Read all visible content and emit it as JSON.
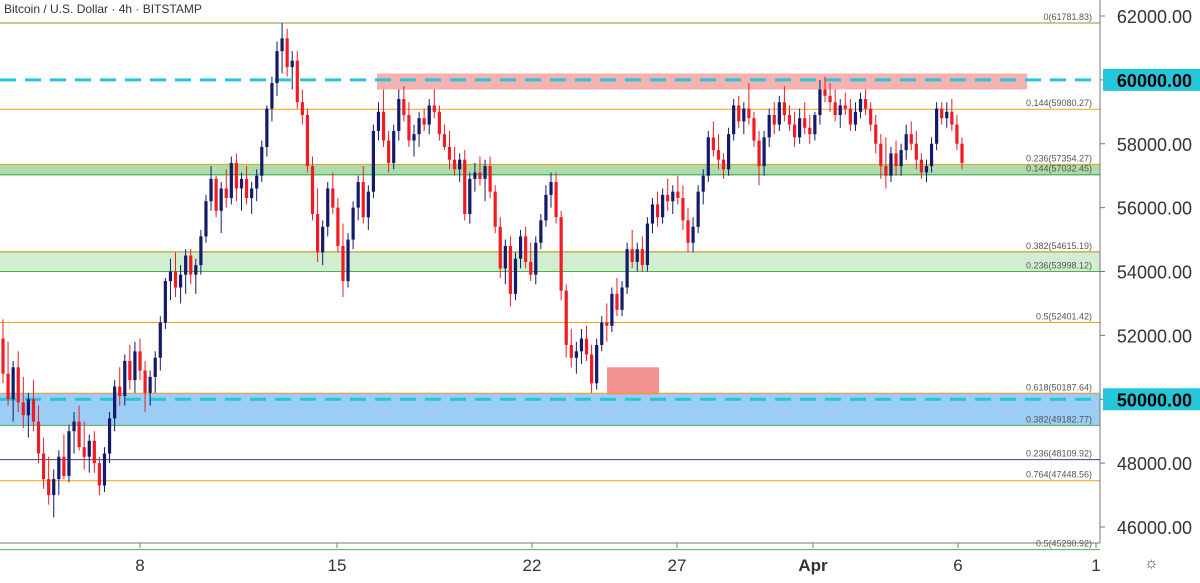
{
  "header": {
    "title": "Bitcoin / U.S. Dollar · 4h · BITSTAMP"
  },
  "icons": {
    "settings": "gear-icon"
  },
  "chart_data": {
    "type": "candlestick",
    "ylim": [
      45000,
      62500
    ],
    "y_ticks": [
      "62000.00",
      "60000.00",
      "58000.00",
      "56000.00",
      "54000.00",
      "52000.00",
      "50000.00",
      "48000.00",
      "46000.00"
    ],
    "x_ticks": [
      "8",
      "15",
      "22",
      "27",
      "Apr",
      "6",
      "1"
    ],
    "colors": {
      "up": "#131a6b",
      "down": "#ee1c25",
      "axis_text": "#333333"
    },
    "zones": [
      {
        "name": "resistance-zone",
        "from": 59700,
        "to": 60200,
        "x_start": "15",
        "color": "#f4a3a3"
      },
      {
        "name": "support-zone-57",
        "from": 57000,
        "to": 57354,
        "color": "#9fd6a0"
      },
      {
        "name": "support-zone-54",
        "from": 54000,
        "to": 54615,
        "color": "#c9ebc9"
      },
      {
        "name": "support-zone-50",
        "from": 49180,
        "to": 50190,
        "color": "#90c8f4"
      },
      {
        "name": "low-marker",
        "from": 50150,
        "to": 51000,
        "color": "#f17f7f"
      }
    ],
    "levels": [
      {
        "value": 61781.83,
        "label": "0(61781.83)",
        "color": "#8a9a1f"
      },
      {
        "value": 59080.27,
        "label": "0.144(59080.27)",
        "color": "#f39c12"
      },
      {
        "value": 57354.27,
        "label": "0.236(57354.27)",
        "color": "#f39c12"
      },
      {
        "value": 57032.45,
        "label": "0.144(57032.45)",
        "color": "#4caf50"
      },
      {
        "value": 54615.19,
        "label": "0.382(54615.19)",
        "color": "#b8860b"
      },
      {
        "value": 53998.12,
        "label": "0.236(53998.12)",
        "color": "#4caf50"
      },
      {
        "value": 52401.42,
        "label": "0.5(52401.42)",
        "color": "#f39c12"
      },
      {
        "value": 50187.64,
        "label": "0.618(50187.64)",
        "color": "#f39c12"
      },
      {
        "value": 49182.77,
        "label": "0.382(49182.77)",
        "color": "#4caf50"
      },
      {
        "value": 48109.92,
        "label": "0.236(48109.92)",
        "color": "#3f3f8f"
      },
      {
        "value": 47448.56,
        "label": "0.764(47448.56)",
        "color": "#f39c12"
      },
      {
        "value": 45290.92,
        "label": "0.5(45290.92)",
        "color": "#4caf50"
      }
    ],
    "dashed_lines": [
      {
        "value": 60000,
        "color": "#26c6da"
      },
      {
        "value": 50000,
        "color": "#26c6da"
      }
    ],
    "candles": [
      [
        51900,
        52500,
        50500,
        50800
      ],
      [
        50800,
        51800,
        49800,
        50000
      ],
      [
        50000,
        51200,
        49300,
        51000
      ],
      [
        51000,
        51500,
        49600,
        49900
      ],
      [
        49900,
        50700,
        49100,
        49500
      ],
      [
        49500,
        50200,
        48800,
        50000
      ],
      [
        50000,
        50600,
        49000,
        49300
      ],
      [
        49300,
        49800,
        48000,
        48300
      ],
      [
        48300,
        48800,
        47200,
        47500
      ],
      [
        47500,
        48200,
        46700,
        47000
      ],
      [
        47000,
        47800,
        46300,
        47500
      ],
      [
        47500,
        48400,
        47000,
        48200
      ],
      [
        48200,
        48900,
        47500,
        47600
      ],
      [
        47600,
        49200,
        47400,
        49000
      ],
      [
        49000,
        49600,
        48300,
        49300
      ],
      [
        49300,
        49800,
        48400,
        48500
      ],
      [
        48500,
        49300,
        47800,
        48200
      ],
      [
        48200,
        48900,
        47700,
        48700
      ],
      [
        48700,
        49000,
        47700,
        48000
      ],
      [
        48000,
        48200,
        47000,
        47300
      ],
      [
        47300,
        48500,
        47100,
        48300
      ],
      [
        48300,
        49600,
        48000,
        49400
      ],
      [
        49400,
        50600,
        49000,
        50400
      ],
      [
        50400,
        51000,
        49800,
        50100
      ],
      [
        50100,
        51400,
        49800,
        51200
      ],
      [
        51200,
        51700,
        50300,
        50600
      ],
      [
        50600,
        51800,
        50200,
        51500
      ],
      [
        51500,
        51900,
        50600,
        50900
      ],
      [
        50900,
        51200,
        49600,
        50200
      ],
      [
        50200,
        50900,
        49800,
        50700
      ],
      [
        50700,
        51500,
        50200,
        51300
      ],
      [
        51300,
        52600,
        50900,
        52400
      ],
      [
        52400,
        53800,
        52200,
        53700
      ],
      [
        53700,
        54400,
        53100,
        54000
      ],
      [
        54000,
        54600,
        53200,
        53500
      ],
      [
        53500,
        54200,
        53000,
        53900
      ],
      [
        53900,
        54700,
        53300,
        54500
      ],
      [
        54500,
        54700,
        53600,
        53900
      ],
      [
        53900,
        54400,
        53300,
        54200
      ],
      [
        54200,
        55300,
        53900,
        55100
      ],
      [
        55100,
        56400,
        54900,
        56200
      ],
      [
        56200,
        57300,
        55900,
        56900
      ],
      [
        56900,
        57000,
        55700,
        55900
      ],
      [
        55900,
        56800,
        55200,
        56600
      ],
      [
        56600,
        57200,
        56000,
        56300
      ],
      [
        56300,
        57600,
        56100,
        57400
      ],
      [
        57400,
        57700,
        56200,
        56600
      ],
      [
        56600,
        57100,
        55900,
        56900
      ],
      [
        56900,
        57300,
        56100,
        56300
      ],
      [
        56300,
        56800,
        55800,
        56600
      ],
      [
        56600,
        57200,
        56200,
        57000
      ],
      [
        57000,
        58100,
        56800,
        57900
      ],
      [
        57900,
        59200,
        57600,
        59100
      ],
      [
        59100,
        60100,
        58700,
        59900
      ],
      [
        59900,
        61200,
        59500,
        60900
      ],
      [
        60900,
        61780,
        60200,
        61300
      ],
      [
        61300,
        61600,
        60100,
        60400
      ],
      [
        60400,
        60900,
        59700,
        60600
      ],
      [
        60600,
        60900,
        59100,
        59300
      ],
      [
        59300,
        59700,
        58600,
        58900
      ],
      [
        58900,
        59100,
        57100,
        57300
      ],
      [
        57300,
        57600,
        55600,
        55800
      ],
      [
        55800,
        56600,
        54300,
        54600
      ],
      [
        54600,
        55600,
        54200,
        55400
      ],
      [
        55400,
        56800,
        55100,
        56600
      ],
      [
        56600,
        57100,
        55800,
        56000
      ],
      [
        56000,
        56300,
        54600,
        54800
      ],
      [
        54800,
        55500,
        53200,
        53700
      ],
      [
        53700,
        55200,
        53500,
        55000
      ],
      [
        55000,
        56200,
        54700,
        56000
      ],
      [
        56000,
        57000,
        55600,
        56800
      ],
      [
        56800,
        57300,
        55500,
        55700
      ],
      [
        55700,
        56700,
        55300,
        56500
      ],
      [
        56500,
        58600,
        56300,
        58400
      ],
      [
        58400,
        59300,
        58100,
        59000
      ],
      [
        59000,
        59700,
        57900,
        58100
      ],
      [
        58100,
        58400,
        57100,
        57400
      ],
      [
        57400,
        58600,
        57200,
        58400
      ],
      [
        58400,
        59700,
        58100,
        59400
      ],
      [
        59400,
        59800,
        58700,
        58900
      ],
      [
        58900,
        59300,
        57900,
        58100
      ],
      [
        58100,
        58600,
        57600,
        58300
      ],
      [
        58300,
        59000,
        57900,
        58800
      ],
      [
        58800,
        59100,
        58400,
        58600
      ],
      [
        58600,
        59400,
        58300,
        59200
      ],
      [
        59200,
        59700,
        58800,
        59000
      ],
      [
        59000,
        59200,
        58100,
        58300
      ],
      [
        58300,
        58600,
        57800,
        57900
      ],
      [
        57900,
        58400,
        57200,
        57500
      ],
      [
        57500,
        57900,
        57000,
        57200
      ],
      [
        57200,
        57700,
        56800,
        57500
      ],
      [
        57500,
        57800,
        55600,
        55800
      ],
      [
        55800,
        57100,
        55500,
        56900
      ],
      [
        56900,
        57400,
        56500,
        57100
      ],
      [
        57100,
        57600,
        56700,
        56900
      ],
      [
        56900,
        57500,
        56200,
        57300
      ],
      [
        57300,
        57600,
        56300,
        56500
      ],
      [
        56500,
        56700,
        55200,
        55400
      ],
      [
        55400,
        55700,
        53800,
        54100
      ],
      [
        54100,
        55000,
        53600,
        54800
      ],
      [
        54800,
        55100,
        52900,
        53300
      ],
      [
        53300,
        54600,
        53100,
        54400
      ],
      [
        54400,
        55300,
        54100,
        55100
      ],
      [
        55100,
        55400,
        54100,
        54300
      ],
      [
        54300,
        54900,
        53700,
        53900
      ],
      [
        53900,
        55100,
        53600,
        54900
      ],
      [
        54900,
        55800,
        54700,
        55600
      ],
      [
        55600,
        56700,
        55400,
        56400
      ],
      [
        56400,
        57100,
        56000,
        56800
      ],
      [
        56800,
        57100,
        55500,
        55700
      ],
      [
        55700,
        55900,
        53100,
        53400
      ],
      [
        53400,
        53600,
        51300,
        51700
      ],
      [
        51700,
        52200,
        51000,
        51300
      ],
      [
        51300,
        51800,
        50800,
        51500
      ],
      [
        51500,
        52200,
        51100,
        51900
      ],
      [
        51900,
        52300,
        51200,
        51400
      ],
      [
        51400,
        51700,
        50200,
        50500
      ],
      [
        50500,
        51900,
        50300,
        51700
      ],
      [
        51700,
        52600,
        51500,
        52400
      ],
      [
        52400,
        53000,
        51800,
        52300
      ],
      [
        52300,
        53500,
        52100,
        53300
      ],
      [
        53300,
        53800,
        52600,
        52800
      ],
      [
        52800,
        53700,
        52600,
        53500
      ],
      [
        53500,
        54900,
        53300,
        54700
      ],
      [
        54700,
        55300,
        54100,
        54300
      ],
      [
        54300,
        54900,
        54000,
        54700
      ],
      [
        54700,
        55100,
        54000,
        54200
      ],
      [
        54200,
        55700,
        54000,
        55500
      ],
      [
        55500,
        56300,
        55200,
        56100
      ],
      [
        56100,
        56500,
        55400,
        55700
      ],
      [
        55700,
        56600,
        55500,
        56400
      ],
      [
        56400,
        56900,
        55900,
        56200
      ],
      [
        56200,
        56700,
        55800,
        56500
      ],
      [
        56500,
        57000,
        56100,
        56300
      ],
      [
        56300,
        56700,
        55300,
        55600
      ],
      [
        55600,
        56000,
        54600,
        54900
      ],
      [
        54900,
        55700,
        54600,
        55400
      ],
      [
        55400,
        56700,
        55200,
        56500
      ],
      [
        56500,
        57200,
        56100,
        57000
      ],
      [
        57000,
        58400,
        56800,
        58200
      ],
      [
        58200,
        58700,
        57600,
        57800
      ],
      [
        57800,
        58300,
        57200,
        57500
      ],
      [
        57500,
        57700,
        56900,
        57200
      ],
      [
        57200,
        58500,
        57000,
        58300
      ],
      [
        58300,
        59400,
        58100,
        59200
      ],
      [
        59200,
        59500,
        58500,
        58700
      ],
      [
        58700,
        59300,
        58300,
        59100
      ],
      [
        59100,
        59900,
        58600,
        58800
      ],
      [
        58800,
        59000,
        57900,
        58100
      ],
      [
        58100,
        58400,
        56700,
        57300
      ],
      [
        57300,
        58400,
        57000,
        58200
      ],
      [
        58200,
        59100,
        57900,
        58900
      ],
      [
        58900,
        59300,
        58300,
        58600
      ],
      [
        58600,
        59500,
        58400,
        59300
      ],
      [
        59300,
        59800,
        58700,
        58900
      ],
      [
        58900,
        59200,
        58400,
        58600
      ],
      [
        58600,
        59000,
        57900,
        58200
      ],
      [
        58200,
        59100,
        58000,
        58800
      ],
      [
        58800,
        59300,
        58300,
        58500
      ],
      [
        58500,
        58900,
        58000,
        58300
      ],
      [
        58300,
        59000,
        58100,
        58900
      ],
      [
        58900,
        60000,
        58600,
        59700
      ],
      [
        59700,
        60100,
        59300,
        59500
      ],
      [
        59500,
        59900,
        59000,
        59300
      ],
      [
        59300,
        59700,
        58700,
        58900
      ],
      [
        58900,
        59400,
        58500,
        59200
      ],
      [
        59200,
        59600,
        58900,
        59100
      ],
      [
        59100,
        59400,
        58400,
        58600
      ],
      [
        58600,
        59300,
        58400,
        59000
      ],
      [
        59000,
        59600,
        58800,
        59400
      ],
      [
        59400,
        59700,
        58900,
        59100
      ],
      [
        59100,
        59300,
        58400,
        58600
      ],
      [
        58600,
        58900,
        57700,
        58000
      ],
      [
        58000,
        58300,
        56900,
        57300
      ],
      [
        57300,
        58200,
        56600,
        57000
      ],
      [
        57000,
        57900,
        56800,
        57700
      ],
      [
        57700,
        58100,
        57000,
        57300
      ],
      [
        57300,
        58000,
        57000,
        57800
      ],
      [
        57800,
        58600,
        57500,
        58300
      ],
      [
        58300,
        58700,
        57800,
        58000
      ],
      [
        58000,
        58400,
        57200,
        57500
      ],
      [
        57500,
        57700,
        56900,
        57100
      ],
      [
        57100,
        57500,
        56800,
        57300
      ],
      [
        57300,
        58200,
        57100,
        58000
      ],
      [
        58000,
        59300,
        57800,
        59100
      ],
      [
        59100,
        59300,
        58600,
        58800
      ],
      [
        58800,
        59300,
        58500,
        59000
      ],
      [
        59000,
        59400,
        58400,
        58600
      ],
      [
        58600,
        58900,
        57800,
        58000
      ],
      [
        58000,
        58200,
        57200,
        57400
      ]
    ]
  }
}
